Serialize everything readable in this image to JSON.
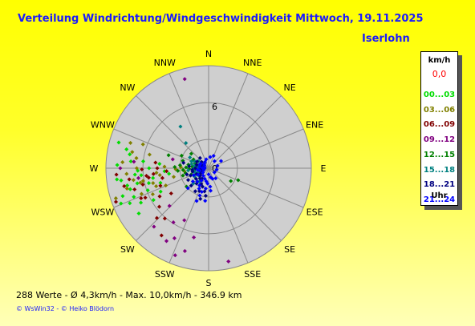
{
  "header": {
    "title": "Verteilung Windrichtung/Windgeschwindigkeit  Mittwoch, 19.11.2025",
    "location": "Iserlohn"
  },
  "footer": {
    "stats": "288 Werte   -   Ø 4,3km/h  -  Max. 10,0km/h   -   346.9 km",
    "credit": "© WsWin32  -  © Heiko Blödorn"
  },
  "legend": {
    "unit": "km/h",
    "calm_value": "0,0",
    "calm_color": "#ff0000",
    "classes": [
      {
        "label": "00...03",
        "color": "#00dd00"
      },
      {
        "label": "03...06",
        "color": "#808000"
      },
      {
        "label": "06...09",
        "color": "#800000"
      },
      {
        "label": "09...12",
        "color": "#800080"
      },
      {
        "label": "12...15",
        "color": "#008000"
      },
      {
        "label": "15...18",
        "color": "#008080"
      },
      {
        "label": "18...21",
        "color": "#000080"
      },
      {
        "label": "21...24",
        "color": "#0000ff"
      }
    ],
    "footer": "Uhr"
  },
  "chart_data": {
    "type": "scatter",
    "subtype": "polar",
    "title": "Verteilung Windrichtung/Windgeschwindigkeit  Mittwoch, 19.11.2025",
    "directions": [
      "N",
      "NNE",
      "NE",
      "ENE",
      "E",
      "ESE",
      "SE",
      "SSE",
      "S",
      "SSW",
      "SW",
      "WSW",
      "W",
      "WNW",
      "NW",
      "NNW"
    ],
    "radial_ticks": [
      0,
      6
    ],
    "radial_max": 10,
    "radial_unit": "km/h",
    "angle_unit": "degrees clockwise from N",
    "grid": true,
    "legend_position": "right",
    "series": [
      {
        "name": "00...03",
        "color": "#00dd00",
        "points": [
          [
            248,
            9.2
          ],
          [
            252,
            8.8
          ],
          [
            255,
            7.9
          ],
          [
            258,
            8.1
          ],
          [
            262,
            8.6
          ],
          [
            265,
            7.2
          ],
          [
            268,
            6.9
          ],
          [
            272,
            8.9
          ],
          [
            275,
            7.6
          ],
          [
            243,
            7.4
          ],
          [
            246,
            8.4
          ],
          [
            250,
            6.3
          ],
          [
            256,
            6.0
          ],
          [
            260,
            5.5
          ],
          [
            264,
            6.6
          ],
          [
            270,
            5.8
          ],
          [
            280,
            7.8
          ],
          [
            286,
            9.1
          ],
          [
            283,
            8.2
          ],
          [
            240,
            6.2
          ],
          [
            237,
            8.1
          ],
          [
            244,
            5.2
          ],
          [
            253,
            4.9
          ],
          [
            266,
            4.3
          ],
          [
            275,
            4.8
          ],
          [
            258,
            7.1
          ],
          [
            249,
            7.8
          ],
          [
            263,
            9.0
          ],
          [
            276,
            6.4
          ],
          [
            262,
            3.9
          ]
        ]
      },
      {
        "name": "03...06",
        "color": "#808000",
        "points": [
          [
            252,
            9.5
          ],
          [
            256,
            8.2
          ],
          [
            261,
            7.4
          ],
          [
            266,
            8.0
          ],
          [
            270,
            7.0
          ],
          [
            274,
            8.4
          ],
          [
            278,
            7.1
          ],
          [
            282,
            7.6
          ],
          [
            288,
            8.0
          ],
          [
            245,
            6.0
          ],
          [
            249,
            7.0
          ],
          [
            255,
            5.6
          ],
          [
            259,
            6.5
          ],
          [
            265,
            5.1
          ],
          [
            272,
            4.3
          ],
          [
            262,
            4.8
          ],
          [
            248,
            4.5
          ],
          [
            256,
            3.5
          ],
          [
            268,
            3.2
          ],
          [
            283,
            5.9
          ],
          [
            290,
            6.8
          ],
          [
            272,
            2.7
          ],
          [
            264,
            2.4
          ],
          [
            258,
            6.8
          ],
          [
            251,
            5.4
          ]
        ]
      },
      {
        "name": "06...09",
        "color": "#800000",
        "points": [
          [
            250,
            9.6
          ],
          [
            254,
            7.5
          ],
          [
            258,
            8.4
          ],
          [
            262,
            7.8
          ],
          [
            266,
            9.0
          ],
          [
            269,
            6.5
          ],
          [
            256,
            6.6
          ],
          [
            261,
            5.9
          ],
          [
            264,
            5.4
          ],
          [
            270,
            5.0
          ],
          [
            245,
            6.8
          ],
          [
            250,
            5.0
          ],
          [
            258,
            4.6
          ],
          [
            266,
            4.1
          ],
          [
            246,
            7.2
          ],
          [
            263,
            6.1
          ],
          [
            276,
            5.2
          ],
          [
            232,
            6.1
          ],
          [
            226,
            7.0
          ],
          [
            240,
            5.5
          ],
          [
            236,
            4.4
          ],
          [
            221,
            6.5
          ],
          [
            215,
            8.0
          ]
        ]
      },
      {
        "name": "09...12",
        "color": "#800080",
        "points": [
          [
            345,
            9.0
          ],
          [
            210,
            8.2
          ],
          [
            206,
            7.6
          ],
          [
            201,
            9.1
          ],
          [
            196,
            8.4
          ],
          [
            223,
            7.8
          ],
          [
            213,
            6.3
          ],
          [
            205,
            5.6
          ],
          [
            270,
            8.6
          ],
          [
            275,
            7.3
          ],
          [
            226,
            5.3
          ],
          [
            262,
            6.9
          ],
          [
            284,
            3.6
          ],
          [
            192,
            6.9
          ],
          [
            168,
            9.3
          ]
        ]
      },
      {
        "name": "12...15",
        "color": "#008000",
        "points": [
          [
            268,
            1.9
          ],
          [
            272,
            2.2
          ],
          [
            276,
            1.6
          ],
          [
            262,
            1.4
          ],
          [
            280,
            2.0
          ],
          [
            258,
            2.3
          ],
          [
            286,
            2.6
          ],
          [
            295,
            2.9
          ],
          [
            300,
            1.7
          ],
          [
            250,
            1.8
          ],
          [
            265,
            3.0
          ],
          [
            288,
            4.1
          ],
          [
            230,
            2.8
          ],
          [
            120,
            2.5
          ],
          [
            112,
            3.1
          ],
          [
            282,
            1.2
          ],
          [
            254,
            2.6
          ],
          [
            290,
            1.4
          ],
          [
            272,
            3.3
          ],
          [
            276,
            2.8
          ],
          [
            310,
            2.2
          ],
          [
            266,
            2.5
          ]
        ]
      },
      {
        "name": "15...18",
        "color": "#008080",
        "points": [
          [
            272,
            1.1
          ],
          [
            276,
            0.8
          ],
          [
            280,
            1.4
          ],
          [
            288,
            1.0
          ],
          [
            296,
            1.5
          ],
          [
            305,
            1.2
          ],
          [
            268,
            1.5
          ],
          [
            262,
            1.0
          ],
          [
            255,
            1.4
          ],
          [
            248,
            1.1
          ],
          [
            240,
            1.6
          ],
          [
            232,
            1.2
          ],
          [
            225,
            2.1
          ],
          [
            215,
            1.6
          ],
          [
            318,
            3.3
          ],
          [
            326,
            4.9
          ],
          [
            284,
            1.7
          ],
          [
            300,
            2.1
          ],
          [
            264,
            2.0
          ],
          [
            292,
            1.8
          ]
        ]
      },
      {
        "name": "18...21",
        "color": "#000080",
        "points": [
          [
            276,
            0.5
          ],
          [
            284,
            0.6
          ],
          [
            292,
            0.7
          ],
          [
            300,
            0.6
          ],
          [
            270,
            0.8
          ],
          [
            262,
            0.7
          ],
          [
            252,
            0.6
          ],
          [
            244,
            0.8
          ],
          [
            236,
            0.9
          ],
          [
            228,
            1.1
          ],
          [
            220,
            1.3
          ],
          [
            212,
            1.2
          ],
          [
            205,
            1.7
          ],
          [
            198,
            1.9
          ],
          [
            190,
            2.3
          ],
          [
            186,
            2.7
          ],
          [
            202,
            2.4
          ],
          [
            218,
            1.9
          ],
          [
            230,
            1.6
          ],
          [
            244,
            1.3
          ],
          [
            258,
            1.6
          ],
          [
            312,
            0.9
          ],
          [
            320,
            1.3
          ],
          [
            286,
            1.2
          ],
          [
            270,
            1.3
          ],
          [
            264,
            1.6
          ],
          [
            300,
            1.3
          ],
          [
            276,
            1.9
          ],
          [
            248,
            1.9
          ],
          [
            210,
            2.6
          ],
          [
            195,
            3.1
          ],
          [
            225,
            2.4
          ],
          [
            254,
            2.2
          ],
          [
            240,
            2.3
          ],
          [
            282,
            2.5
          ]
        ]
      },
      {
        "name": "21...24",
        "color": "#0000ff",
        "points": [
          [
            60,
            1.4
          ],
          [
            75,
            0.9
          ],
          [
            100,
            0.8
          ],
          [
            125,
            0.7
          ],
          [
            145,
            1.2
          ],
          [
            160,
            1.1
          ],
          [
            175,
            1.8
          ],
          [
            190,
            1.3
          ],
          [
            200,
            1.1
          ],
          [
            215,
            0.9
          ],
          [
            232,
            0.7
          ],
          [
            250,
            0.5
          ],
          [
            265,
            0.4
          ],
          [
            285,
            0.4
          ],
          [
            305,
            0.5
          ],
          [
            330,
            0.7
          ],
          [
            345,
            0.9
          ],
          [
            8,
            1.1
          ],
          [
            22,
            1.3
          ],
          [
            40,
            0.9
          ],
          [
            180,
            0.6
          ],
          [
            168,
            0.9
          ],
          [
            188,
            2.0
          ],
          [
            196,
            2.4
          ],
          [
            208,
            1.9
          ],
          [
            220,
            1.7
          ],
          [
            238,
            1.2
          ],
          [
            255,
            0.9
          ],
          [
            272,
            0.6
          ],
          [
            292,
            0.9
          ],
          [
            315,
            0.6
          ],
          [
            210,
            1.4
          ],
          [
            205,
            2.2
          ],
          [
            198,
            2.8
          ],
          [
            230,
            2.0
          ],
          [
            245,
            1.6
          ],
          [
            262,
            1.1
          ],
          [
            278,
            0.9
          ],
          [
            184,
            1.5
          ],
          [
            175,
            2.2
          ],
          [
            300,
            0.9
          ],
          [
            186,
            3.2
          ],
          [
            200,
            3.4
          ],
          [
            226,
            2.8
          ]
        ]
      }
    ]
  }
}
